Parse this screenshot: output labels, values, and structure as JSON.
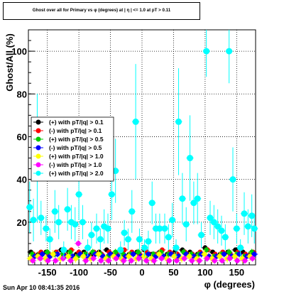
{
  "title": "Ghost over all for Primary vs φ (degrees) at | η | <= 1.0 at pT > 0.11",
  "timestamp": "Sun Apr 10 08:41:35 2016",
  "chart_data": {
    "type": "scatter",
    "title": "Ghost over all for Primary vs φ (degrees) at | η | <= 1.0 at pT > 0.11",
    "xlabel": "φ (degrees)",
    "ylabel": "Ghost/All (%)",
    "xlim": [
      -180,
      180
    ],
    "ylim": [
      0,
      110
    ],
    "xticks": [
      -150,
      -100,
      -50,
      0,
      50,
      100,
      150
    ],
    "xtick_labels": [
      "-150",
      "-100",
      "-50",
      "0",
      "50",
      "100",
      "150"
    ],
    "yticks": [
      20,
      40,
      60,
      80,
      100
    ],
    "ytick_labels": [
      "20",
      "40",
      "60",
      "80",
      "100"
    ],
    "grid": true,
    "legend_position": "middle-left",
    "series": [
      {
        "name": "(+) with pT/|q| > 0.1",
        "color": "#000000",
        "x": [
          -176,
          -164,
          -152,
          -140,
          -128,
          -116,
          -104,
          -92,
          -80,
          -68,
          -56,
          -44,
          -32,
          -20,
          -8,
          4,
          16,
          28,
          40,
          52,
          64,
          76,
          88,
          100,
          112,
          124,
          136,
          148,
          160,
          172
        ],
        "y": [
          6,
          5,
          6,
          5,
          7,
          6,
          5,
          6,
          5,
          6,
          7,
          5,
          6,
          5,
          6,
          7,
          5,
          6,
          5,
          6,
          7,
          6,
          5,
          8,
          6,
          5,
          6,
          7,
          6,
          5
        ],
        "err": [
          1,
          1,
          1,
          1,
          1,
          1,
          1,
          1,
          1,
          1,
          1,
          1,
          1,
          1,
          1,
          1,
          1,
          1,
          1,
          1,
          1,
          1,
          1,
          1,
          1,
          1,
          1,
          1,
          1,
          1
        ]
      },
      {
        "name": "(-) with pT/|q| > 0.1",
        "color": "#ff0000",
        "x": [
          -172,
          -160,
          -148,
          -136,
          -124,
          -112,
          -100,
          -88,
          -76,
          -64,
          -52,
          -40,
          -28,
          -16,
          -4,
          8,
          20,
          32,
          44,
          56,
          68,
          80,
          92,
          104,
          116,
          128,
          140,
          152,
          164,
          176
        ],
        "y": [
          5,
          6,
          5,
          6,
          5,
          7,
          6,
          5,
          6,
          5,
          6,
          5,
          7,
          6,
          5,
          6,
          5,
          7,
          6,
          5,
          6,
          5,
          6,
          7,
          5,
          6,
          5,
          6,
          5,
          6
        ],
        "err": [
          1,
          1,
          1,
          1,
          1,
          1,
          1,
          1,
          1,
          1,
          1,
          1,
          1,
          1,
          1,
          1,
          1,
          1,
          1,
          1,
          1,
          1,
          1,
          1,
          1,
          1,
          1,
          1,
          1,
          1
        ]
      },
      {
        "name": "(+) with pT/|q| > 0.5",
        "color": "#00cc00",
        "x": [
          -174,
          -162,
          -150,
          -138,
          -126,
          -114,
          -102,
          -90,
          -78,
          -66,
          -54,
          -42,
          -30,
          -18,
          -6,
          6,
          18,
          30,
          42,
          54,
          66,
          78,
          90,
          102,
          114,
          126,
          138,
          150,
          162,
          174
        ],
        "y": [
          5,
          4,
          6,
          5,
          5,
          6,
          4,
          5,
          6,
          5,
          4,
          6,
          5,
          5,
          6,
          4,
          5,
          6,
          5,
          4,
          6,
          5,
          5,
          7,
          4,
          5,
          6,
          5,
          4,
          6
        ],
        "err": [
          1.5,
          1.5,
          1.5,
          1.5,
          1.5,
          1.5,
          1.5,
          1.5,
          1.5,
          1.5,
          1.5,
          1.5,
          1.5,
          1.5,
          1.5,
          1.5,
          1.5,
          1.5,
          1.5,
          1.5,
          1.5,
          1.5,
          1.5,
          1.5,
          1.5,
          1.5,
          1.5,
          1.5,
          1.5,
          1.5
        ]
      },
      {
        "name": "(-) with pT/|q| > 0.5",
        "color": "#0000ff",
        "x": [
          -170,
          -158,
          -146,
          -134,
          -122,
          -110,
          -98,
          -86,
          -74,
          -62,
          -50,
          -38,
          -26,
          -14,
          -2,
          10,
          22,
          34,
          46,
          58,
          70,
          82,
          94,
          106,
          118,
          130,
          142,
          154,
          166,
          178
        ],
        "y": [
          4,
          5,
          4,
          5,
          4,
          4,
          5,
          4,
          5,
          4,
          5,
          4,
          4,
          5,
          4,
          5,
          4,
          4,
          5,
          4,
          5,
          4,
          5,
          4,
          4,
          5,
          4,
          5,
          4,
          5
        ],
        "err": [
          1.5,
          1.5,
          1.5,
          1.5,
          1.5,
          1.5,
          1.5,
          1.5,
          1.5,
          1.5,
          1.5,
          1.5,
          1.5,
          1.5,
          1.5,
          1.5,
          1.5,
          1.5,
          1.5,
          1.5,
          1.5,
          1.5,
          1.5,
          1.5,
          1.5,
          1.5,
          1.5,
          1.5,
          1.5,
          1.5
        ]
      },
      {
        "name": "(+) with pT/|q| > 1.0",
        "color": "#ffff00",
        "x": [
          -177,
          -165,
          -153,
          -141,
          -129,
          -117,
          -105,
          -93,
          -81,
          -69,
          -57,
          -45,
          -33,
          -21,
          -9,
          3,
          15,
          27,
          39,
          51,
          63,
          75,
          87,
          99,
          111,
          123,
          135,
          147,
          159,
          171
        ],
        "y": [
          3,
          4,
          3,
          5,
          3,
          4,
          3,
          4,
          3,
          5,
          3,
          4,
          3,
          4,
          3,
          4,
          3,
          5,
          3,
          4,
          3,
          4,
          3,
          5,
          3,
          4,
          3,
          4,
          3,
          4
        ],
        "err": [
          2,
          2,
          2,
          2,
          2,
          2,
          2,
          2,
          2,
          2,
          2,
          2,
          2,
          2,
          2,
          2,
          2,
          2,
          2,
          2,
          2,
          2,
          2,
          2,
          2,
          2,
          2,
          2,
          2,
          2
        ]
      },
      {
        "name": "(-) with pT/|q| > 1.0",
        "color": "#ff00ff",
        "x": [
          -173,
          -161,
          -149,
          -137,
          -125,
          -113,
          -101,
          -89,
          -77,
          -65,
          -53,
          -41,
          -29,
          -17,
          -5,
          7,
          19,
          31,
          43,
          55,
          67,
          79,
          91,
          103,
          115,
          127,
          139,
          151,
          163,
          175
        ],
        "y": [
          2,
          3,
          2,
          2,
          3,
          2,
          10,
          2,
          3,
          2,
          2,
          3,
          2,
          2,
          3,
          2,
          2,
          3,
          2,
          2,
          3,
          2,
          2,
          3,
          2,
          2,
          3,
          2,
          2,
          3
        ],
        "err": [
          1.5,
          1.5,
          1.5,
          1.5,
          1.5,
          1.5,
          1.5,
          1.5,
          1.5,
          1.5,
          1.5,
          1.5,
          1.5,
          1.5,
          1.5,
          1.5,
          1.5,
          1.5,
          1.5,
          1.5,
          1.5,
          1.5,
          1.5,
          1.5,
          1.5,
          1.5,
          1.5,
          1.5,
          1.5,
          1.5
        ]
      },
      {
        "name": "(+) with pT/|q| > 2.0",
        "color": "#00ffff",
        "x": [
          -178,
          -172,
          -166,
          -160,
          -152,
          -146,
          -138,
          -132,
          -124,
          -118,
          -112,
          -106,
          -100,
          -94,
          -86,
          -80,
          -72,
          -66,
          -60,
          -54,
          -48,
          -42,
          -34,
          -28,
          -22,
          -16,
          -10,
          -4,
          4,
          10,
          16,
          22,
          28,
          36,
          42,
          48,
          54,
          58,
          64,
          70,
          76,
          82,
          88,
          94,
          102,
          108,
          114,
          120,
          126,
          132,
          138,
          144,
          150,
          156,
          162,
          168,
          174,
          178
        ],
        "y": [
          27,
          21,
          50,
          22,
          17,
          12,
          25,
          20,
          7,
          26,
          20,
          19,
          33,
          20,
          8,
          14,
          17,
          12,
          18,
          17,
          33,
          44,
          7,
          15,
          12,
          25,
          67,
          12,
          8,
          11,
          29,
          17,
          17,
          17,
          13,
          21,
          8,
          67,
          31,
          19,
          50,
          29,
          31,
          14,
          100,
          22,
          20,
          18,
          16,
          13,
          100,
          40,
          17,
          8,
          24,
          18,
          23,
          17
        ],
        "err": [
          12,
          10,
          30,
          8,
          6,
          5,
          10,
          8,
          4,
          10,
          8,
          8,
          12,
          8,
          4,
          6,
          7,
          5,
          8,
          7,
          12,
          15,
          4,
          6,
          5,
          10,
          27,
          5,
          4,
          5,
          10,
          7,
          7,
          7,
          6,
          8,
          4,
          25,
          12,
          8,
          20,
          10,
          12,
          6,
          12,
          8,
          8,
          8,
          7,
          6,
          15,
          15,
          7,
          4,
          10,
          8,
          10,
          7
        ]
      }
    ]
  }
}
